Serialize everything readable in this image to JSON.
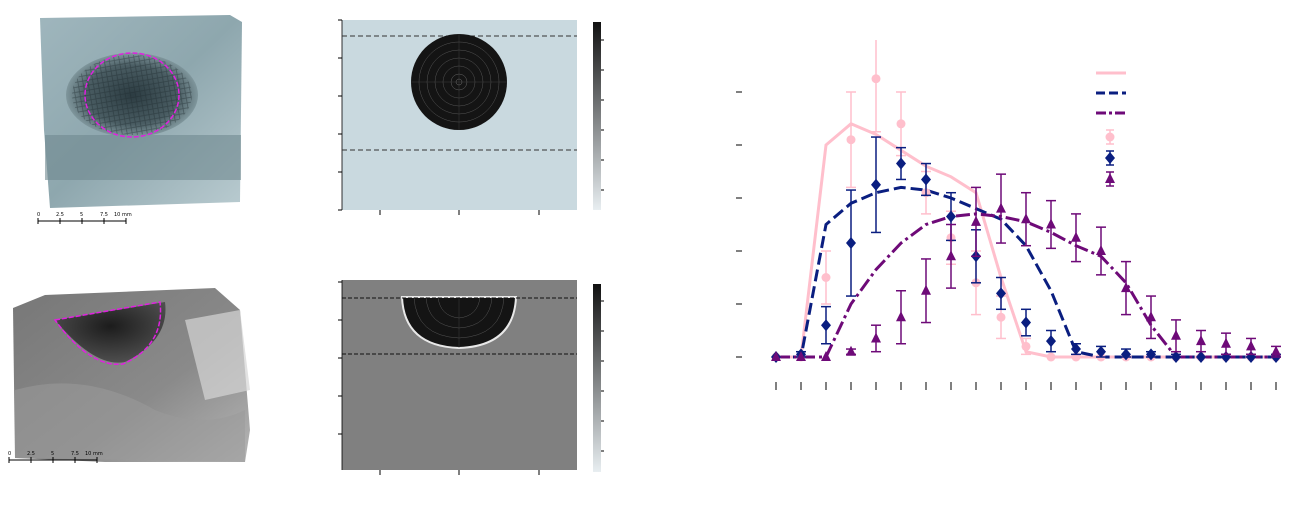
{
  "photos": {
    "top_scale_labels": [
      "0",
      "2.5",
      "5",
      "7.5",
      "10 mm"
    ],
    "bottom_scale_labels": [
      "0",
      "2.5",
      "5",
      "7.5",
      "10 mm"
    ],
    "outline_color": "#e020e0"
  },
  "sim": {
    "top_background": "#c9d9df",
    "bottom_background": "#808080",
    "dashed_line_color": "#333333"
  },
  "chart_data": {
    "type": "line",
    "title": "",
    "xlabel": "",
    "ylabel": "",
    "x": [
      0,
      1,
      2,
      3,
      4,
      5,
      6,
      7,
      8,
      9,
      10,
      11,
      12,
      13,
      14,
      15,
      16,
      17,
      18,
      19,
      20
    ],
    "ylim": [
      -0.05,
      1.25
    ],
    "grid": false,
    "legend_position": "top-right",
    "lines": [
      {
        "color": "#ffbfcc",
        "style": "solid",
        "points": [
          [
            0,
            0
          ],
          [
            1,
            0
          ],
          [
            2,
            0.8
          ],
          [
            3,
            0.88
          ],
          [
            4,
            0.84
          ],
          [
            5,
            0.78
          ],
          [
            6,
            0.72
          ],
          [
            7,
            0.68
          ],
          [
            8,
            0.62
          ],
          [
            9,
            0.3
          ],
          [
            10,
            0.02
          ],
          [
            11,
            0
          ],
          [
            12,
            0
          ],
          [
            13,
            0
          ],
          [
            14,
            0
          ],
          [
            15,
            0
          ],
          [
            16,
            0
          ],
          [
            17,
            0
          ],
          [
            18,
            0
          ],
          [
            19,
            0
          ],
          [
            20,
            0
          ]
        ]
      },
      {
        "color": "#0a1e80",
        "style": "dash",
        "points": [
          [
            0,
            0
          ],
          [
            1,
            0
          ],
          [
            2,
            0.5
          ],
          [
            3,
            0.58
          ],
          [
            4,
            0.62
          ],
          [
            5,
            0.64
          ],
          [
            6,
            0.63
          ],
          [
            7,
            0.6
          ],
          [
            8,
            0.56
          ],
          [
            9,
            0.52
          ],
          [
            10,
            0.42
          ],
          [
            11,
            0.25
          ],
          [
            12,
            0.02
          ],
          [
            13,
            0
          ],
          [
            14,
            0
          ],
          [
            15,
            0
          ],
          [
            16,
            0
          ],
          [
            17,
            0
          ],
          [
            18,
            0
          ],
          [
            19,
            0
          ],
          [
            20,
            0
          ]
        ]
      },
      {
        "color": "#6e0a78",
        "style": "dashdot",
        "points": [
          [
            0,
            0
          ],
          [
            1,
            0
          ],
          [
            2,
            0
          ],
          [
            3,
            0.2
          ],
          [
            4,
            0.33
          ],
          [
            5,
            0.43
          ],
          [
            6,
            0.5
          ],
          [
            7,
            0.53
          ],
          [
            8,
            0.54
          ],
          [
            9,
            0.53
          ],
          [
            10,
            0.51
          ],
          [
            11,
            0.47
          ],
          [
            12,
            0.42
          ],
          [
            13,
            0.38
          ],
          [
            14,
            0.28
          ],
          [
            15,
            0.12
          ],
          [
            16,
            0
          ],
          [
            17,
            0
          ],
          [
            18,
            0
          ],
          [
            19,
            0
          ],
          [
            20,
            0
          ]
        ]
      }
    ],
    "series": [
      {
        "marker": "circle",
        "color": "#ffbfcc",
        "x": [
          0,
          1,
          2,
          3,
          4,
          5,
          6,
          7,
          8,
          9,
          10,
          11,
          12,
          13,
          14,
          15,
          16,
          17,
          18,
          19,
          20
        ],
        "y": [
          0,
          0,
          0.3,
          0.82,
          1.05,
          0.88,
          0.62,
          0.45,
          0.28,
          0.15,
          0.04,
          0,
          0,
          0,
          0,
          0,
          0,
          0,
          0,
          0,
          0
        ],
        "err": [
          0,
          0,
          0.1,
          0.18,
          0.2,
          0.12,
          0.08,
          0.1,
          0.12,
          0.08,
          0.03,
          0,
          0,
          0,
          0,
          0,
          0,
          0,
          0,
          0,
          0
        ]
      },
      {
        "marker": "diamond",
        "color": "#0a1e80",
        "x": [
          0,
          1,
          2,
          3,
          4,
          5,
          6,
          7,
          8,
          9,
          10,
          11,
          12,
          13,
          14,
          15,
          16,
          17,
          18,
          19,
          20
        ],
        "y": [
          0,
          0.01,
          0.12,
          0.43,
          0.65,
          0.73,
          0.67,
          0.53,
          0.38,
          0.24,
          0.13,
          0.06,
          0.03,
          0.02,
          0.01,
          0.01,
          0,
          0,
          0,
          0,
          0
        ],
        "err": [
          0,
          0.01,
          0.07,
          0.2,
          0.18,
          0.06,
          0.06,
          0.09,
          0.1,
          0.06,
          0.05,
          0.04,
          0.02,
          0.02,
          0.02,
          0.01,
          0.01,
          0,
          0.01,
          0.01,
          0.01
        ]
      },
      {
        "marker": "triangle",
        "color": "#6e0a78",
        "x": [
          0,
          1,
          2,
          3,
          4,
          5,
          6,
          7,
          8,
          9,
          10,
          11,
          12,
          13,
          14,
          15,
          16,
          17,
          18,
          19,
          20
        ],
        "y": [
          0,
          0,
          0,
          0.02,
          0.07,
          0.15,
          0.25,
          0.38,
          0.51,
          0.56,
          0.52,
          0.5,
          0.45,
          0.4,
          0.26,
          0.15,
          0.08,
          0.06,
          0.05,
          0.04,
          0.02
        ],
        "err": [
          0,
          0,
          0,
          0.01,
          0.05,
          0.1,
          0.12,
          0.12,
          0.13,
          0.13,
          0.1,
          0.09,
          0.09,
          0.09,
          0.1,
          0.08,
          0.06,
          0.04,
          0.04,
          0.03,
          0.02
        ]
      }
    ]
  }
}
